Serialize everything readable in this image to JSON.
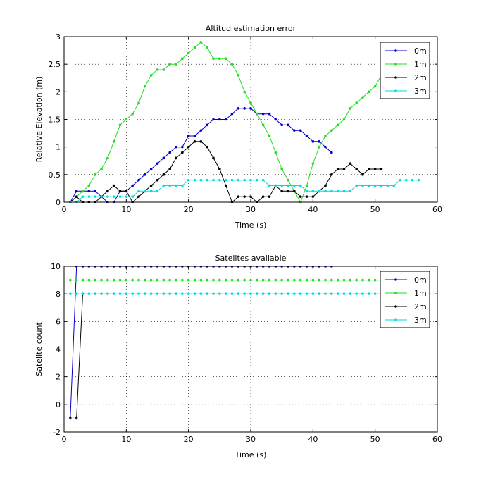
{
  "chart_data": [
    {
      "type": "line",
      "title": "Altitud estimation error",
      "xlabel": "Time (s)",
      "ylabel": "Relative Elevation (m)",
      "xlim": [
        0,
        60
      ],
      "ylim": [
        0,
        3
      ],
      "xticks": [
        0,
        10,
        20,
        30,
        40,
        50,
        60
      ],
      "yticks": [
        0,
        0.5,
        1,
        1.5,
        2,
        2.5,
        3
      ],
      "xtick_labels": [
        "0",
        "10",
        "20",
        "30",
        "40",
        "50",
        "60"
      ],
      "ytick_labels": [
        "0",
        "0.5",
        "1",
        "1.5",
        "2",
        "2.5",
        "3"
      ],
      "grid": true,
      "legend_position": "top-right",
      "series": [
        {
          "name": "0m",
          "color": "#0000cc",
          "x": [
            1,
            2,
            3,
            4,
            5,
            6,
            7,
            8,
            9,
            10,
            11,
            12,
            13,
            14,
            15,
            16,
            17,
            18,
            19,
            20,
            21,
            22,
            23,
            24,
            25,
            26,
            27,
            28,
            29,
            30,
            31,
            32,
            33,
            34,
            35,
            36,
            37,
            38,
            39,
            40,
            41,
            42,
            43
          ],
          "y": [
            0,
            0.2,
            0.2,
            0.2,
            0.2,
            0.1,
            0,
            0,
            0.2,
            0.2,
            0.3,
            0.4,
            0.5,
            0.6,
            0.7,
            0.8,
            0.9,
            1.0,
            1.0,
            1.2,
            1.2,
            1.3,
            1.4,
            1.5,
            1.5,
            1.5,
            1.6,
            1.7,
            1.7,
            1.7,
            1.6,
            1.6,
            1.6,
            1.5,
            1.4,
            1.4,
            1.3,
            1.3,
            1.2,
            1.1,
            1.1,
            1.0,
            0.9
          ]
        },
        {
          "name": "1m",
          "color": "#22dd22",
          "x": [
            1,
            2,
            3,
            4,
            5,
            6,
            7,
            8,
            9,
            10,
            11,
            12,
            13,
            14,
            15,
            16,
            17,
            18,
            19,
            20,
            21,
            22,
            23,
            24,
            25,
            26,
            27,
            28,
            29,
            30,
            31,
            32,
            33,
            34,
            35,
            36,
            37,
            38,
            39,
            40,
            41,
            42,
            43,
            44,
            45,
            46,
            47,
            48,
            49,
            50,
            51
          ],
          "y": [
            0,
            0.1,
            0.2,
            0.3,
            0.5,
            0.6,
            0.8,
            1.1,
            1.4,
            1.5,
            1.6,
            1.8,
            2.1,
            2.3,
            2.4,
            2.4,
            2.5,
            2.5,
            2.6,
            2.7,
            2.8,
            2.9,
            2.8,
            2.6,
            2.6,
            2.6,
            2.5,
            2.3,
            2.0,
            1.8,
            1.6,
            1.4,
            1.2,
            0.9,
            0.6,
            0.4,
            0.2,
            0,
            0.3,
            0.7,
            1.0,
            1.2,
            1.3,
            1.4,
            1.5,
            1.7,
            1.8,
            1.9,
            2.0,
            2.1,
            2.3
          ]
        },
        {
          "name": "2m",
          "color": "#000000",
          "x": [
            1,
            2,
            3,
            4,
            5,
            6,
            7,
            8,
            9,
            10,
            11,
            12,
            13,
            14,
            15,
            16,
            17,
            18,
            19,
            20,
            21,
            22,
            23,
            24,
            25,
            26,
            27,
            28,
            29,
            30,
            31,
            32,
            33,
            34,
            35,
            36,
            37,
            38,
            39,
            40,
            41,
            42,
            43,
            44,
            45,
            46,
            47,
            48,
            49,
            50,
            51
          ],
          "y": [
            0,
            0.1,
            0,
            0,
            0,
            0.1,
            0.2,
            0.3,
            0.2,
            0.2,
            0,
            0.1,
            0.2,
            0.3,
            0.4,
            0.5,
            0.6,
            0.8,
            0.9,
            1.0,
            1.1,
            1.1,
            1.0,
            0.8,
            0.6,
            0.3,
            0,
            0.1,
            0.1,
            0.1,
            0,
            0.1,
            0.1,
            0.3,
            0.2,
            0.2,
            0.2,
            0.1,
            0.1,
            0.1,
            0.2,
            0.3,
            0.5,
            0.6,
            0.6,
            0.7,
            0.6,
            0.5,
            0.6,
            0.6,
            0.6
          ]
        },
        {
          "name": "3m",
          "color": "#00dddd",
          "x": [
            1,
            2,
            3,
            4,
            5,
            6,
            7,
            8,
            9,
            10,
            11,
            12,
            13,
            14,
            15,
            16,
            17,
            18,
            19,
            20,
            21,
            22,
            23,
            24,
            25,
            26,
            27,
            28,
            29,
            30,
            31,
            32,
            33,
            34,
            35,
            36,
            37,
            38,
            39,
            40,
            41,
            42,
            43,
            44,
            45,
            46,
            47,
            48,
            49,
            50,
            51,
            52,
            53,
            54,
            55,
            56,
            57
          ],
          "y": [
            0,
            0,
            0.1,
            0.1,
            0.1,
            0.1,
            0.1,
            0.1,
            0.1,
            0.1,
            0.1,
            0.2,
            0.2,
            0.2,
            0.2,
            0.3,
            0.3,
            0.3,
            0.3,
            0.4,
            0.4,
            0.4,
            0.4,
            0.4,
            0.4,
            0.4,
            0.4,
            0.4,
            0.4,
            0.4,
            0.4,
            0.4,
            0.3,
            0.3,
            0.3,
            0.3,
            0.3,
            0.3,
            0.2,
            0.2,
            0.2,
            0.2,
            0.2,
            0.2,
            0.2,
            0.2,
            0.3,
            0.3,
            0.3,
            0.3,
            0.3,
            0.3,
            0.3,
            0.4,
            0.4,
            0.4,
            0.4
          ]
        }
      ]
    },
    {
      "type": "line",
      "title": "Satelites available",
      "xlabel": "Time (s)",
      "ylabel": "Satelite count",
      "xlim": [
        0,
        60
      ],
      "ylim": [
        -2,
        10
      ],
      "xticks": [
        0,
        10,
        20,
        30,
        40,
        50,
        60
      ],
      "yticks": [
        -2,
        0,
        2,
        4,
        6,
        8,
        10
      ],
      "xtick_labels": [
        "0",
        "10",
        "20",
        "30",
        "40",
        "50",
        "60"
      ],
      "ytick_labels": [
        "-2",
        "0",
        "2",
        "4",
        "6",
        "8",
        "10"
      ],
      "grid": true,
      "legend_position": "top-right",
      "series": [
        {
          "name": "0m",
          "color": "#0000cc",
          "x": [
            1,
            2,
            3,
            4,
            5,
            6,
            7,
            8,
            9,
            10,
            11,
            12,
            13,
            14,
            15,
            16,
            17,
            18,
            19,
            20,
            21,
            22,
            23,
            24,
            25,
            26,
            27,
            28,
            29,
            30,
            31,
            32,
            33,
            34,
            35,
            36,
            37,
            38,
            39,
            40,
            41,
            42,
            43
          ],
          "y": [
            -1,
            10,
            10,
            10,
            10,
            10,
            10,
            10,
            10,
            10,
            10,
            10,
            10,
            10,
            10,
            10,
            10,
            10,
            10,
            10,
            10,
            10,
            10,
            10,
            10,
            10,
            10,
            10,
            10,
            10,
            10,
            10,
            10,
            10,
            10,
            10,
            10,
            10,
            10,
            10,
            10,
            10,
            10
          ]
        },
        {
          "name": "1m",
          "color": "#22dd22",
          "x": [
            1,
            2,
            3,
            4,
            5,
            6,
            7,
            8,
            9,
            10,
            11,
            12,
            13,
            14,
            15,
            16,
            17,
            18,
            19,
            20,
            21,
            22,
            23,
            24,
            25,
            26,
            27,
            28,
            29,
            30,
            31,
            32,
            33,
            34,
            35,
            36,
            37,
            38,
            39,
            40,
            41,
            42,
            43,
            44,
            45,
            46,
            47,
            48,
            49,
            50,
            51
          ],
          "y": [
            9,
            9,
            9,
            9,
            9,
            9,
            9,
            9,
            9,
            9,
            9,
            9,
            9,
            9,
            9,
            9,
            9,
            9,
            9,
            9,
            9,
            9,
            9,
            9,
            9,
            9,
            9,
            9,
            9,
            9,
            9,
            9,
            9,
            9,
            9,
            9,
            9,
            9,
            9,
            9,
            9,
            9,
            9,
            9,
            9,
            9,
            9,
            9,
            9,
            9,
            9
          ]
        },
        {
          "name": "2m",
          "color": "#000000",
          "x": [
            1,
            2,
            3
          ],
          "y": [
            -1,
            -1,
            8
          ]
        },
        {
          "name": "3m",
          "color": "#00dddd",
          "x": [
            1,
            2,
            3,
            4,
            5,
            6,
            7,
            8,
            9,
            10,
            11,
            12,
            13,
            14,
            15,
            16,
            17,
            18,
            19,
            20,
            21,
            22,
            23,
            24,
            25,
            26,
            27,
            28,
            29,
            30,
            31,
            32,
            33,
            34,
            35,
            36,
            37,
            38,
            39,
            40,
            41,
            42,
            43,
            44,
            45,
            46,
            47,
            48,
            49,
            50,
            51
          ],
          "y": [
            8,
            8,
            8,
            8,
            8,
            8,
            8,
            8,
            8,
            8,
            8,
            8,
            8,
            8,
            8,
            8,
            8,
            8,
            8,
            8,
            8,
            8,
            8,
            8,
            8,
            8,
            8,
            8,
            8,
            8,
            8,
            8,
            8,
            8,
            8,
            8,
            8,
            8,
            8,
            8,
            8,
            8,
            8,
            8,
            8,
            8,
            8,
            8,
            8,
            8,
            8
          ]
        }
      ]
    }
  ]
}
